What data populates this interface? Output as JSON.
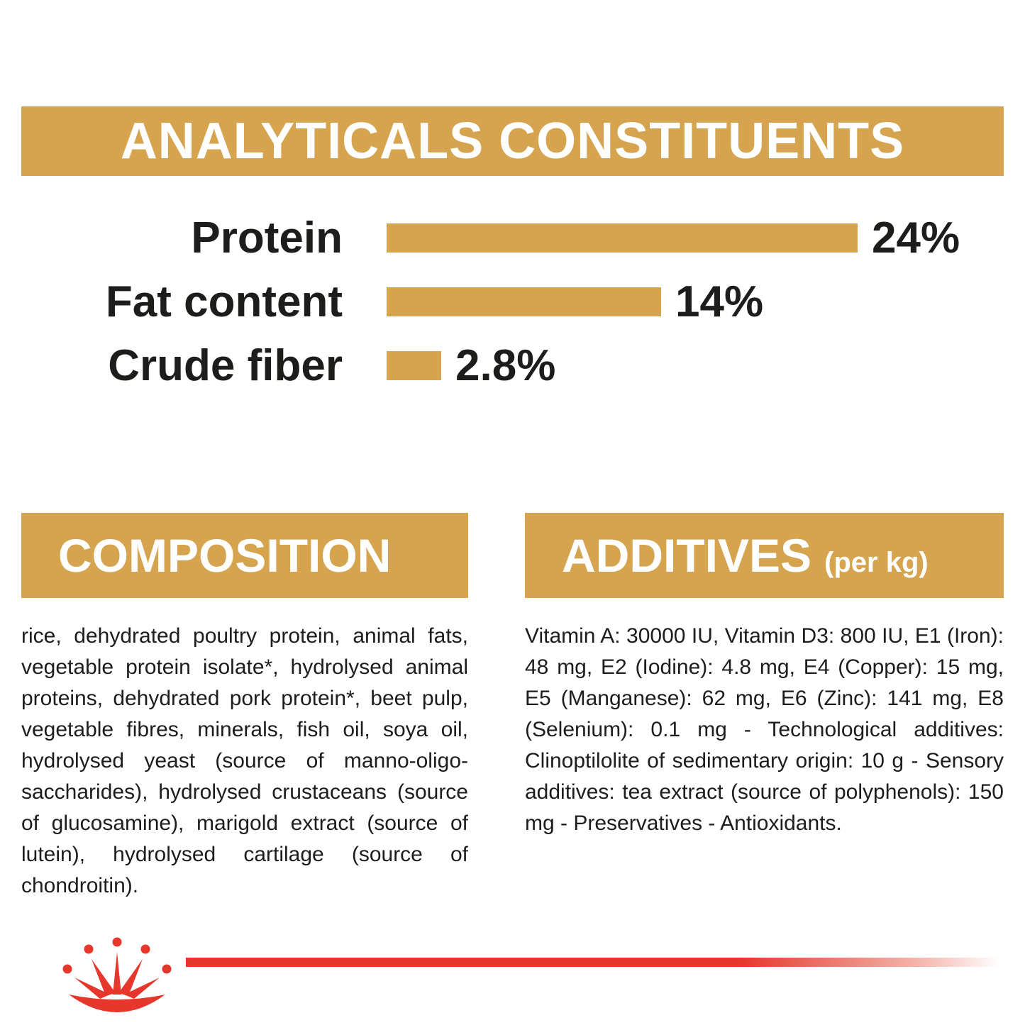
{
  "colors": {
    "gold": "#D6A44E",
    "red": "#E5372C",
    "text": "#1d1d1b"
  },
  "analyticals": {
    "title": "ANALYTICALS CONSTITUENTS",
    "rows": [
      {
        "label": "Protein",
        "value": 24,
        "value_label": "24%"
      },
      {
        "label": "Fat content",
        "value": 14,
        "value_label": "14%"
      },
      {
        "label": "Crude fiber",
        "value": 2.8,
        "value_label": "2.8%"
      }
    ]
  },
  "chart_data": {
    "type": "bar",
    "orientation": "horizontal",
    "title": "ANALYTICALS CONSTITUENTS",
    "categories": [
      "Protein",
      "Fat content",
      "Crude fiber"
    ],
    "values": [
      24,
      14,
      2.8
    ],
    "value_labels": [
      "24%",
      "14%",
      "2.8%"
    ],
    "xlim": [
      0,
      24
    ],
    "bar_color": "#D6A44E",
    "grid": false,
    "legend": false
  },
  "composition": {
    "title": "COMPOSITION",
    "body": "rice, dehydrated poultry protein, animal fats, vegetable protein isolate*, hydrolysed animal proteins, dehydrated pork protein*, beet pulp, vegetable fibres, minerals, fish oil, soya oil, hydrolysed yeast (source of manno-oligo-saccharides), hydrolysed crustaceans (source of glucosamine), marigold extract (source of lutein), hydrolysed cartilage (source of chondroitin)."
  },
  "additives": {
    "title": "ADDITIVES",
    "title_suffix": "(per kg)",
    "body": "Vitamin A: 30000 IU, Vitamin D3: 800 IU, E1 (Iron): 48 mg, E2 (Iodine): 4.8 mg, E4 (Copper): 15 mg, E5 (Manganese): 62 mg, E6 (Zinc): 141 mg, E8 (Selenium): 0.1 mg - Technological additives: Clinoptilolite of sedimentary origin: 10 g - Sensory additives: tea extract (source of polyphenols): 150 mg - Preservatives - Antioxidants."
  },
  "footer": {
    "logo": "royal-canin-crown"
  }
}
